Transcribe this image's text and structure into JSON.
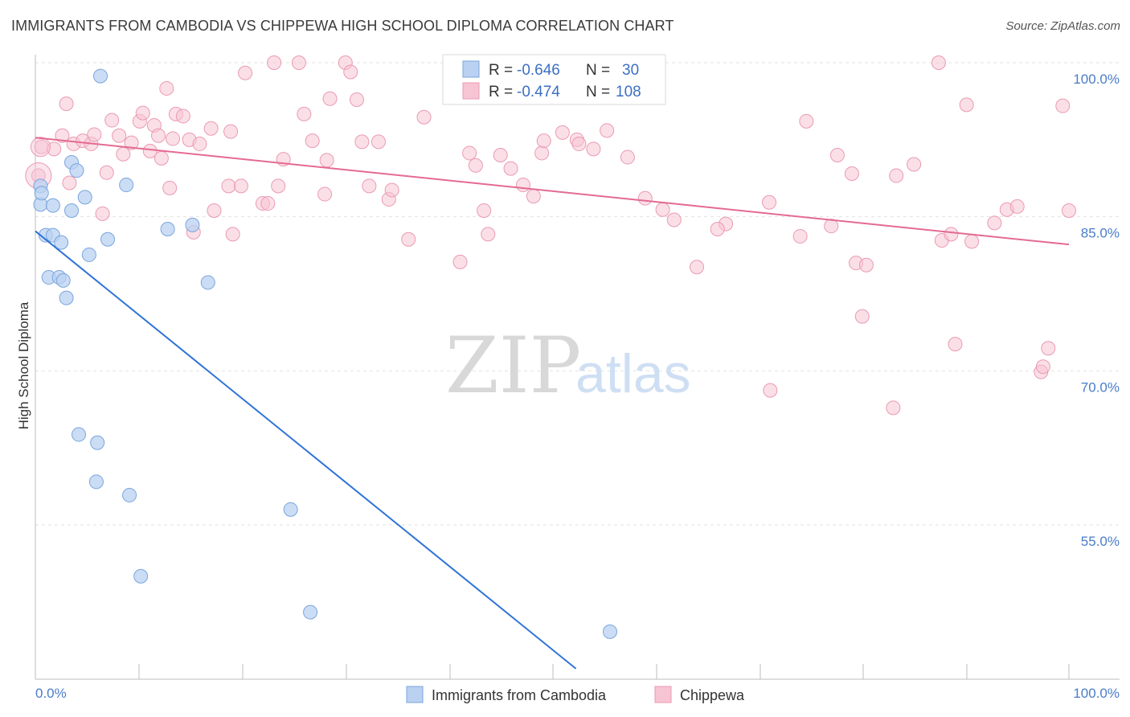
{
  "title": "IMMIGRANTS FROM CAMBODIA VS CHIPPEWA HIGH SCHOOL DIPLOMA CORRELATION CHART",
  "source": "Source: ZipAtlas.com",
  "watermark": {
    "zip": "ZIP",
    "atlas": "atlas"
  },
  "colors": {
    "blue_fill": "#bad1f1",
    "blue_stroke": "#7aa5dd",
    "blue_line": "#2f74d6",
    "pink_fill": "#f7c4d4",
    "pink_stroke": "#ea9ab4",
    "pink_line": "#e46a92",
    "tick_text": "#4a7cc9",
    "grid": "#e2e2e2"
  },
  "stats": [
    {
      "r_label": "R =",
      "r_value": "-0.646",
      "n_label": "N =",
      "n_value": "30"
    },
    {
      "r_label": "R =",
      "r_value": "-0.474",
      "n_label": "N =",
      "n_value": "108"
    }
  ],
  "chart_data": {
    "type": "scatter",
    "title": "IMMIGRANTS FROM CAMBODIA VS CHIPPEWA HIGH SCHOOL DIPLOMA CORRELATION CHART",
    "xlabel": "",
    "ylabel": "High School Diploma",
    "xlim": [
      0,
      100
    ],
    "ylim": [
      41,
      102
    ],
    "x_tick_labels": [
      "0.0%",
      "100.0%"
    ],
    "y_ticks": [
      {
        "value": 100,
        "label": "100.0%"
      },
      {
        "value": 85,
        "label": "85.0%"
      },
      {
        "value": 70,
        "label": "70.0%"
      },
      {
        "value": 55,
        "label": "55.0%"
      }
    ],
    "grid": true,
    "legend_position": "bottom",
    "series": [
      {
        "name": "Immigrants from Cambodia",
        "color": "#bad1f1",
        "trend": {
          "x0": 0,
          "y0": 83.6,
          "x1": 52.3,
          "y1": 41
        },
        "points": [
          [
            0.5,
            88.0
          ],
          [
            0.5,
            86.2
          ],
          [
            0.6,
            87.3
          ],
          [
            1.0,
            83.2
          ],
          [
            1.3,
            79.1
          ],
          [
            1.7,
            83.2
          ],
          [
            1.7,
            86.1
          ],
          [
            2.3,
            79.1
          ],
          [
            2.5,
            82.5
          ],
          [
            2.7,
            78.8
          ],
          [
            3.0,
            77.1
          ],
          [
            3.5,
            90.3
          ],
          [
            3.5,
            85.6
          ],
          [
            4.0,
            89.5
          ],
          [
            4.8,
            86.9
          ],
          [
            5.2,
            81.3
          ],
          [
            6.3,
            98.7
          ],
          [
            7.0,
            82.8
          ],
          [
            8.8,
            88.1
          ],
          [
            12.8,
            83.8
          ],
          [
            15.2,
            84.2
          ],
          [
            16.7,
            78.6
          ],
          [
            4.2,
            63.8
          ],
          [
            6.0,
            63.0
          ],
          [
            5.9,
            59.2
          ],
          [
            9.1,
            57.9
          ],
          [
            10.2,
            50.0
          ],
          [
            24.7,
            56.5
          ],
          [
            26.6,
            46.5
          ],
          [
            55.6,
            44.6
          ]
        ]
      },
      {
        "name": "Chippewa",
        "color": "#f7c4d4",
        "trend": {
          "x0": 0,
          "y0": 92.7,
          "x1": 100,
          "y1": 82.3
        },
        "points": [
          [
            0.3,
            89.0
          ],
          [
            0.6,
            91.8
          ],
          [
            1.8,
            91.6
          ],
          [
            2.6,
            92.9
          ],
          [
            3.3,
            88.3
          ],
          [
            3.7,
            92.1
          ],
          [
            4.6,
            92.4
          ],
          [
            5.4,
            92.1
          ],
          [
            5.7,
            93.0
          ],
          [
            6.5,
            85.3
          ],
          [
            6.9,
            89.3
          ],
          [
            7.4,
            94.4
          ],
          [
            8.1,
            92.9
          ],
          [
            8.5,
            91.1
          ],
          [
            9.3,
            92.2
          ],
          [
            10.1,
            94.3
          ],
          [
            10.4,
            95.1
          ],
          [
            11.1,
            91.4
          ],
          [
            11.5,
            93.9
          ],
          [
            11.9,
            92.9
          ],
          [
            12.2,
            90.7
          ],
          [
            12.7,
            97.5
          ],
          [
            13.0,
            87.8
          ],
          [
            13.3,
            92.6
          ],
          [
            13.6,
            95.0
          ],
          [
            14.3,
            94.8
          ],
          [
            14.9,
            92.5
          ],
          [
            15.3,
            83.5
          ],
          [
            15.9,
            92.1
          ],
          [
            17.0,
            93.6
          ],
          [
            17.3,
            85.6
          ],
          [
            18.7,
            88.0
          ],
          [
            18.9,
            93.3
          ],
          [
            19.1,
            83.3
          ],
          [
            19.9,
            88.0
          ],
          [
            20.3,
            99.0
          ],
          [
            22.0,
            86.3
          ],
          [
            22.5,
            86.3
          ],
          [
            23.1,
            100.0
          ],
          [
            23.5,
            88.0
          ],
          [
            24.0,
            90.6
          ],
          [
            25.5,
            100.0
          ],
          [
            26.8,
            92.4
          ],
          [
            28.0,
            87.2
          ],
          [
            28.2,
            90.5
          ],
          [
            28.5,
            96.5
          ],
          [
            30.0,
            100.0
          ],
          [
            30.5,
            99.1
          ],
          [
            31.1,
            96.4
          ],
          [
            31.6,
            92.3
          ],
          [
            32.3,
            88.0
          ],
          [
            33.2,
            92.3
          ],
          [
            34.2,
            86.7
          ],
          [
            36.1,
            82.8
          ],
          [
            37.6,
            94.7
          ],
          [
            41.1,
            80.6
          ],
          [
            42.0,
            91.2
          ],
          [
            42.6,
            90.0
          ],
          [
            43.4,
            85.6
          ],
          [
            43.8,
            83.3
          ],
          [
            45.0,
            91.0
          ],
          [
            46.0,
            89.7
          ],
          [
            47.2,
            88.1
          ],
          [
            48.2,
            87.0
          ],
          [
            49.0,
            91.2
          ],
          [
            49.2,
            92.4
          ],
          [
            51.0,
            93.2
          ],
          [
            52.4,
            92.5
          ],
          [
            52.6,
            92.1
          ],
          [
            54.0,
            91.6
          ],
          [
            55.3,
            93.4
          ],
          [
            57.3,
            90.8
          ],
          [
            59.0,
            86.8
          ],
          [
            60.7,
            85.7
          ],
          [
            61.8,
            84.7
          ],
          [
            64.0,
            80.1
          ],
          [
            66.8,
            84.3
          ],
          [
            66.0,
            83.8
          ],
          [
            71.1,
            68.1
          ],
          [
            71.0,
            86.4
          ],
          [
            74.0,
            83.1
          ],
          [
            74.6,
            94.3
          ],
          [
            77.0,
            84.1
          ],
          [
            77.6,
            91.0
          ],
          [
            79.4,
            80.5
          ],
          [
            79.0,
            89.2
          ],
          [
            80.0,
            75.3
          ],
          [
            80.4,
            80.3
          ],
          [
            83.3,
            89.0
          ],
          [
            83.0,
            66.4
          ],
          [
            85.0,
            90.1
          ],
          [
            87.4,
            100.0
          ],
          [
            87.7,
            82.7
          ],
          [
            88.6,
            83.3
          ],
          [
            89.0,
            72.6
          ],
          [
            90.1,
            95.9
          ],
          [
            90.6,
            82.6
          ],
          [
            92.8,
            84.4
          ],
          [
            94.0,
            85.7
          ],
          [
            95.0,
            86.0
          ],
          [
            97.3,
            69.9
          ],
          [
            98.0,
            72.2
          ],
          [
            97.5,
            70.4
          ],
          [
            99.4,
            95.8
          ],
          [
            100.0,
            85.6
          ],
          [
            3.0,
            96.0
          ],
          [
            26.0,
            95.0
          ],
          [
            34.5,
            87.6
          ]
        ]
      }
    ]
  },
  "legend": [
    {
      "label": "Immigrants from Cambodia"
    },
    {
      "label": "Chippewa"
    }
  ]
}
